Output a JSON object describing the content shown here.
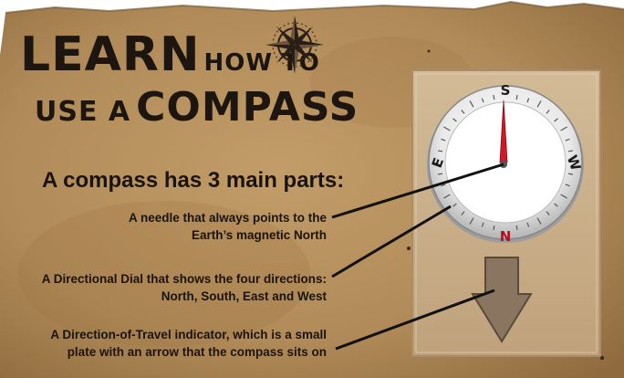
{
  "title": {
    "line1_big": "LEARN",
    "line1_small": "HOW TO",
    "line2_small": "USE A",
    "line2_big": "COMPASS"
  },
  "subtitle": "A compass has 3 main parts:",
  "parts": [
    {
      "line1": "A needle that always points to the",
      "line2": "Earth’s magnetic North"
    },
    {
      "line1": "A Directional Dial that shows the four directions:",
      "line2": "North, South, East and West"
    },
    {
      "line1": "A Direction-of-Travel indicator, which is a small",
      "line2": "plate with an arrow that the compass sits on"
    }
  ],
  "compass": {
    "top": "S",
    "bottom": "N",
    "left": "E",
    "right": "W"
  },
  "colors": {
    "paper": "#b08a58",
    "ink": "#1a140e",
    "needle": "#d01828",
    "plate": "#c7ad8a",
    "arrow": "#8a7560"
  }
}
